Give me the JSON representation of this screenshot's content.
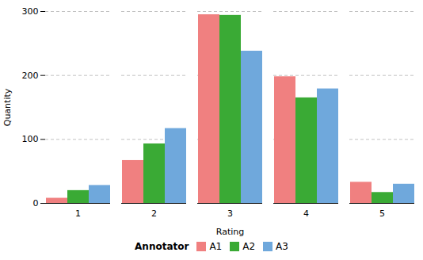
{
  "chart_data": {
    "type": "bar",
    "categories": [
      1,
      2,
      3,
      4,
      5
    ],
    "series": [
      {
        "name": "A1",
        "color": "#F08080",
        "values": [
          8,
          67,
          295,
          198,
          33
        ]
      },
      {
        "name": "A2",
        "color": "#3aaa35",
        "values": [
          20,
          93,
          294,
          165,
          17
        ]
      },
      {
        "name": "A3",
        "color": "#6fa8dc",
        "values": [
          28,
          117,
          238,
          179,
          30
        ]
      }
    ],
    "xlabel": "Rating",
    "ylabel": "Quantity",
    "ylim": [
      0,
      300
    ],
    "yticks": [
      0,
      100,
      200,
      300
    ],
    "grid": true,
    "legend": "bottom",
    "legend_title": "Annotator"
  }
}
